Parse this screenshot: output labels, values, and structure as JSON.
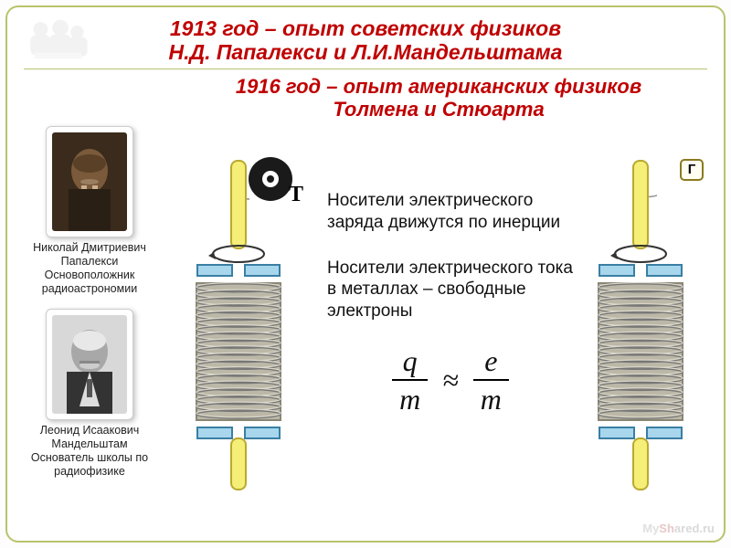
{
  "title_main_line1": "1913 год – опыт советских физиков",
  "title_main_line2": "Н.Д. Папалекси и Л.И.Мандельштама",
  "title_sub_line1": "1916 год – опыт американских физиков",
  "title_sub_line2": "Толмена и Стюарта",
  "portrait1": {
    "name": "Николай Дмитриевич Папалекси",
    "desc": "Основоположник радиоастрономии",
    "tint": "#4a3524"
  },
  "portrait2": {
    "name": "Леонид Исаакович Мандельштам",
    "desc": "Основатель школы по радиофизике",
    "tint": "#6a6a6a"
  },
  "text1": "Носители электрического заряда движутся по инерции",
  "text2": "Носители электрического тока в металлах – свободные электроны",
  "formula": {
    "left_num": "q",
    "left_den": "m",
    "op": "≈",
    "right_num": "e",
    "right_den": "m"
  },
  "labels": {
    "T": "T",
    "G": "Г"
  },
  "colors": {
    "border": "#b9c36c",
    "title_red": "#c00000",
    "rod_fill": "#f5ee77",
    "rod_stroke": "#b9a92f",
    "plate_fill": "#a7d6ed",
    "plate_stroke": "#3a7fa3",
    "coil_light": "#d8d4c6",
    "coil_dark": "#8a8676",
    "chain": "#888888",
    "disc_outer": "#1a1a1a",
    "disc_inner": "#ffffff"
  },
  "coil": {
    "rod_w": 16,
    "rod_top_h": 92,
    "rod_bot_h": 54,
    "plate_w": 82,
    "plate_h": 12,
    "plate_gap": 6,
    "coil_w": 92,
    "coil_h": 150,
    "coil_turns": 19
  },
  "watermark": {
    "a": "My",
    "b": "Sh",
    "c": "ared.ru"
  }
}
